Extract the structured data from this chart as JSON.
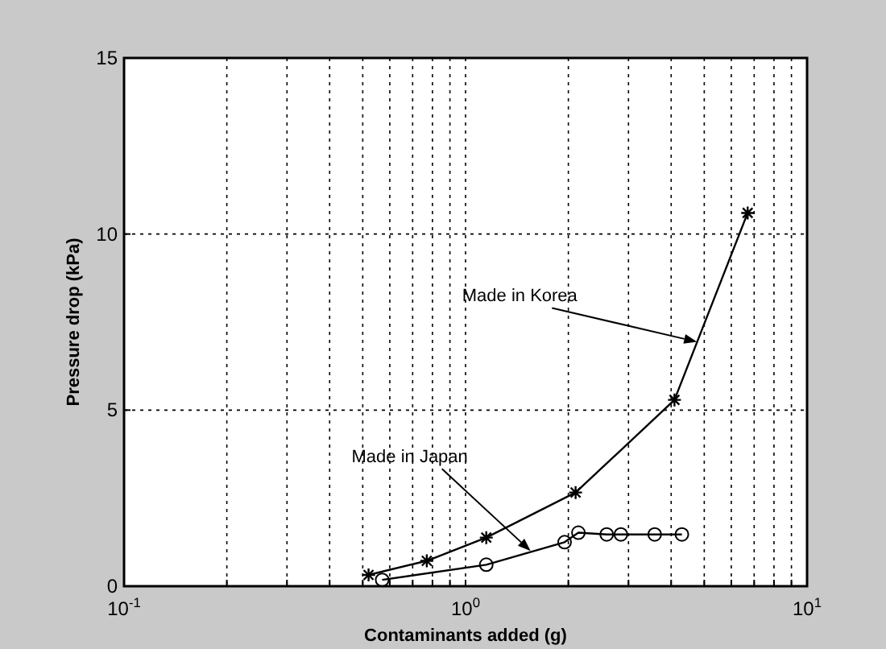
{
  "chart_data": {
    "type": "line",
    "xlabel": "Contaminants added (g)",
    "ylabel": "Pressure drop (kPa)",
    "log": "x",
    "xlim": [
      0.1,
      10
    ],
    "ylim": [
      0,
      15
    ],
    "xticks": [
      {
        "value": 0.1,
        "label": "10$^{-1}$"
      },
      {
        "value": 0.2,
        "label": null
      },
      {
        "value": 0.3,
        "label": null
      },
      {
        "value": 0.4,
        "label": null
      },
      {
        "value": 0.5,
        "label": null
      },
      {
        "value": 0.6,
        "label": null
      },
      {
        "value": 0.7,
        "label": null
      },
      {
        "value": 0.8,
        "label": null
      },
      {
        "value": 0.9,
        "label": null
      },
      {
        "value": 1,
        "label": "10$^{0}$"
      },
      {
        "value": 2,
        "label": null
      },
      {
        "value": 3,
        "label": null
      },
      {
        "value": 4,
        "label": null
      },
      {
        "value": 5,
        "label": null
      },
      {
        "value": 6,
        "label": null
      },
      {
        "value": 7,
        "label": null
      },
      {
        "value": 8,
        "label": null
      },
      {
        "value": 9,
        "label": null
      },
      {
        "value": 10,
        "label": "10$^{1}$"
      }
    ],
    "yticks": [
      0,
      5,
      10,
      15
    ],
    "grid": true,
    "series": [
      {
        "color": "#000000",
        "marker": "cross",
        "x": [
          0.52,
          0.77,
          1.15,
          2.1,
          4.09,
          6.7
        ],
        "values": [
          0.32,
          0.72,
          1.38,
          2.66,
          5.29,
          10.6
        ]
      },
      {
        "color": "#000000",
        "marker": "circle",
        "x": [
          0.57,
          1.15,
          1.95,
          2.14,
          2.59,
          2.85,
          3.58,
          4.3
        ],
        "values": [
          0.18,
          0.61,
          1.25,
          1.52,
          1.47,
          1.47,
          1.47,
          1.47
        ]
      }
    ],
    "annotations": [
      {
        "text": "Made in Korea",
        "x": 4.76,
        "y": 6.94
      },
      {
        "text": "Made in Japan",
        "x": 1.55,
        "y": 1.0
      }
    ]
  }
}
